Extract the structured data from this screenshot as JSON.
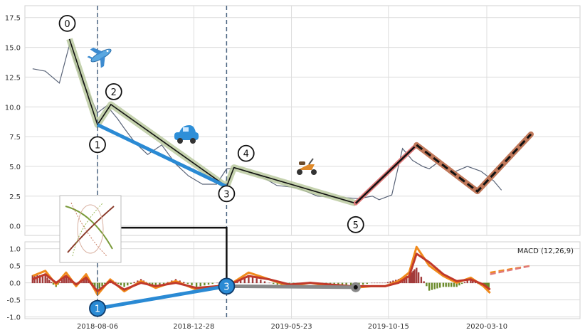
{
  "chart_data": [
    {
      "type": "line",
      "panel": "price",
      "ylim": [
        -0.8,
        18.5
      ],
      "yticks": [
        "0.0",
        "2.5",
        "5.0",
        "7.5",
        "10.0",
        "12.5",
        "15.0",
        "17.5"
      ],
      "grid": true,
      "price_series": {
        "x_dates": [
          "2018-05-01",
          "2018-05-20",
          "2018-06-10",
          "2018-06-25",
          "2018-07-05",
          "2018-07-15",
          "2018-07-25",
          "2018-08-06",
          "2018-08-20",
          "2018-09-05",
          "2018-09-15",
          "2018-10-01",
          "2018-10-20",
          "2018-11-10",
          "2018-12-01",
          "2018-12-20",
          "2019-01-10",
          "2019-01-31",
          "2019-02-15",
          "2019-03-06",
          "2019-03-20",
          "2019-04-10",
          "2019-05-01",
          "2019-06-01",
          "2019-07-01",
          "2019-08-01",
          "2019-09-01",
          "2019-09-21",
          "2019-10-01",
          "2019-10-20",
          "2019-11-05",
          "2019-11-20",
          "2019-12-05",
          "2019-12-15",
          "2020-01-01",
          "2020-01-20",
          "2020-02-10",
          "2020-03-01",
          "2020-03-20",
          "2020-04-01"
        ],
        "y_values": [
          13.2,
          13.0,
          12.0,
          15.2,
          13.5,
          12.0,
          11.0,
          9.5,
          10.1,
          9.0,
          8.2,
          7.0,
          6.0,
          6.8,
          5.2,
          4.2,
          3.5,
          3.5,
          4.8,
          4.8,
          4.5,
          4.1,
          3.4,
          3.2,
          2.5,
          2.4,
          2.3,
          2.5,
          2.2,
          2.6,
          6.5,
          5.5,
          5.0,
          4.8,
          5.5,
          4.5,
          5.0,
          4.6,
          3.8,
          3.0
        ]
      },
      "wave": {
        "labels": [
          "0",
          "1",
          "2",
          "3",
          "4",
          "5"
        ],
        "dates": [
          "2018-06-25",
          "2018-08-06",
          "2018-08-26",
          "2019-02-15",
          "2019-02-26",
          "2019-08-27"
        ],
        "values": [
          15.7,
          8.5,
          10.2,
          3.3,
          4.9,
          1.9
        ]
      },
      "blue_segment": {
        "dates": [
          "2018-08-06",
          "2019-02-15"
        ],
        "values": [
          8.5,
          3.3
        ]
      },
      "red_segment": {
        "dates": [
          "2019-08-27",
          "2019-11-26"
        ],
        "values": [
          1.9,
          6.8
        ]
      },
      "projection": {
        "dates": [
          "2019-11-26",
          "2020-02-25",
          "2020-05-15"
        ],
        "values": [
          6.8,
          2.9,
          7.7
        ]
      },
      "vlines": [
        "2018-08-06",
        "2019-02-15"
      ],
      "bracket": {
        "dates": [
          "2018-08-06",
          "2019-02-15"
        ],
        "value": -0.15
      },
      "icons": [
        "airplane-icon",
        "car-icon",
        "scooter-icon"
      ]
    },
    {
      "type": "line",
      "panel": "macd",
      "title": "MACD (12,26,9)",
      "ylim": [
        -1.05,
        1.2
      ],
      "yticks": [
        "-1.0",
        "-0.5",
        "0.0",
        "0.5",
        "1.0"
      ],
      "xticks": [
        "2018-08-06",
        "2018-12-28",
        "2019-05-23",
        "2019-10-15",
        "2020-03-10"
      ],
      "grid": true,
      "macd_line": {
        "dates": [
          "2018-05-01",
          "2018-05-20",
          "2018-06-05",
          "2018-06-20",
          "2018-07-05",
          "2018-07-20",
          "2018-08-06",
          "2018-08-25",
          "2018-09-15",
          "2018-10-10",
          "2018-11-01",
          "2018-12-01",
          "2019-01-01",
          "2019-02-01",
          "2019-02-20",
          "2019-03-20",
          "2019-04-20",
          "2019-05-20",
          "2019-06-20",
          "2019-07-20",
          "2019-08-20",
          "2019-09-20",
          "2019-10-10",
          "2019-10-30",
          "2019-11-15",
          "2019-11-26",
          "2019-12-15",
          "2020-01-05",
          "2020-01-25",
          "2020-02-15",
          "2020-03-05",
          "2020-03-15"
        ],
        "values": [
          0.2,
          0.35,
          -0.05,
          0.3,
          -0.1,
          0.25,
          -0.35,
          0.1,
          -0.25,
          0.05,
          -0.15,
          0.05,
          -0.2,
          -0.1,
          -0.05,
          0.3,
          0.1,
          -0.1,
          0.0,
          -0.1,
          -0.15,
          -0.1,
          -0.1,
          0.05,
          0.3,
          1.05,
          0.5,
          0.2,
          0.0,
          0.15,
          -0.1,
          -0.3
        ]
      },
      "signal_line": {
        "dates": [
          "2018-05-01",
          "2018-05-20",
          "2018-06-05",
          "2018-06-20",
          "2018-07-05",
          "2018-07-20",
          "2018-08-06",
          "2018-08-25",
          "2018-09-15",
          "2018-10-10",
          "2018-11-01",
          "2018-12-01",
          "2019-01-01",
          "2019-02-01",
          "2019-02-20",
          "2019-03-20",
          "2019-04-20",
          "2019-05-20",
          "2019-06-20",
          "2019-07-20",
          "2019-08-20",
          "2019-09-20",
          "2019-10-10",
          "2019-10-30",
          "2019-11-15",
          "2019-11-26",
          "2019-12-15",
          "2020-01-05",
          "2020-01-25",
          "2020-02-15",
          "2020-03-05",
          "2020-03-15"
        ],
        "values": [
          0.1,
          0.25,
          0.0,
          0.2,
          -0.05,
          0.15,
          -0.25,
          0.05,
          -0.2,
          0.0,
          -0.1,
          0.0,
          -0.15,
          -0.1,
          -0.05,
          0.2,
          0.1,
          -0.05,
          0.0,
          -0.05,
          -0.1,
          -0.1,
          -0.1,
          0.0,
          0.2,
          0.85,
          0.6,
          0.25,
          0.05,
          0.1,
          -0.05,
          -0.2
        ]
      },
      "projection": {
        "dates": [
          "2020-03-15",
          "2020-05-15"
        ],
        "values": [
          0.3,
          0.5
        ]
      },
      "wave_points": {
        "labels": [
          "1",
          "3"
        ],
        "dates": [
          "2018-08-06",
          "2019-02-15"
        ],
        "values": [
          -0.75,
          -0.1
        ]
      },
      "gray_segment": {
        "dates": [
          "2019-02-15",
          "2019-08-27"
        ],
        "values": [
          -0.1,
          -0.13
        ]
      }
    }
  ]
}
